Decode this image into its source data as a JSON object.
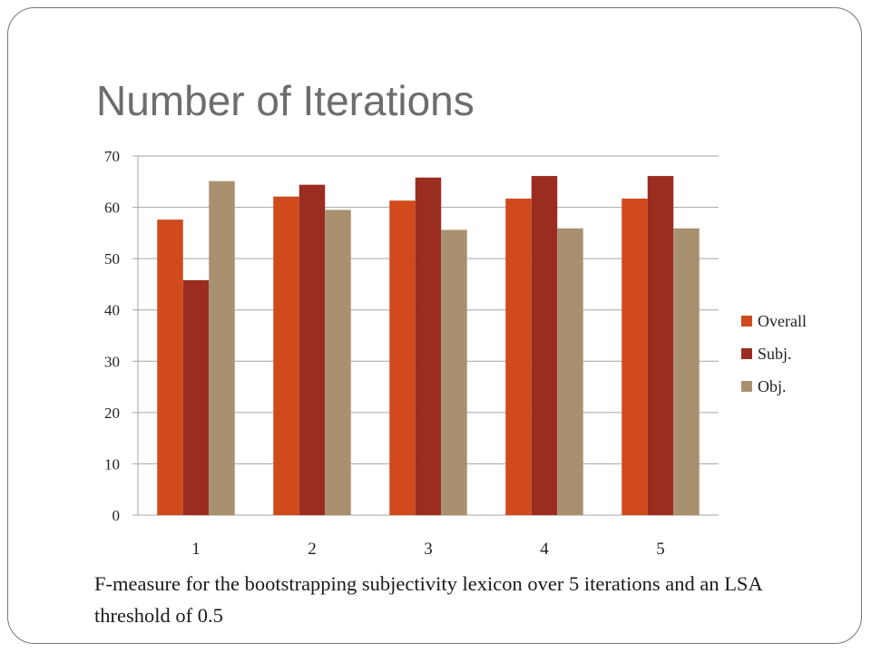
{
  "slide": {
    "title": "Number of Iterations",
    "caption": "F-measure for the bootstrapping subjectivity lexicon over 5 iterations and an LSA threshold of 0.5"
  },
  "chart_data": {
    "type": "bar",
    "title": "",
    "xlabel": "",
    "ylabel": "",
    "categories": [
      "1",
      "2",
      "3",
      "4",
      "5"
    ],
    "series": [
      {
        "name": "Overall",
        "color": "#D04A1C",
        "values": [
          57.6,
          62.1,
          61.3,
          61.7,
          61.7
        ]
      },
      {
        "name": "Subj.",
        "color": "#9A2D20",
        "values": [
          45.8,
          64.4,
          65.8,
          66.1,
          66.1
        ]
      },
      {
        "name": "Obj.",
        "color": "#A99170",
        "values": [
          65.1,
          59.5,
          55.6,
          55.9,
          55.9
        ]
      }
    ],
    "ylim": [
      0,
      70
    ],
    "yticks": [
      0,
      10,
      20,
      30,
      40,
      50,
      60,
      70
    ],
    "grid": true,
    "legend_position": "right"
  }
}
